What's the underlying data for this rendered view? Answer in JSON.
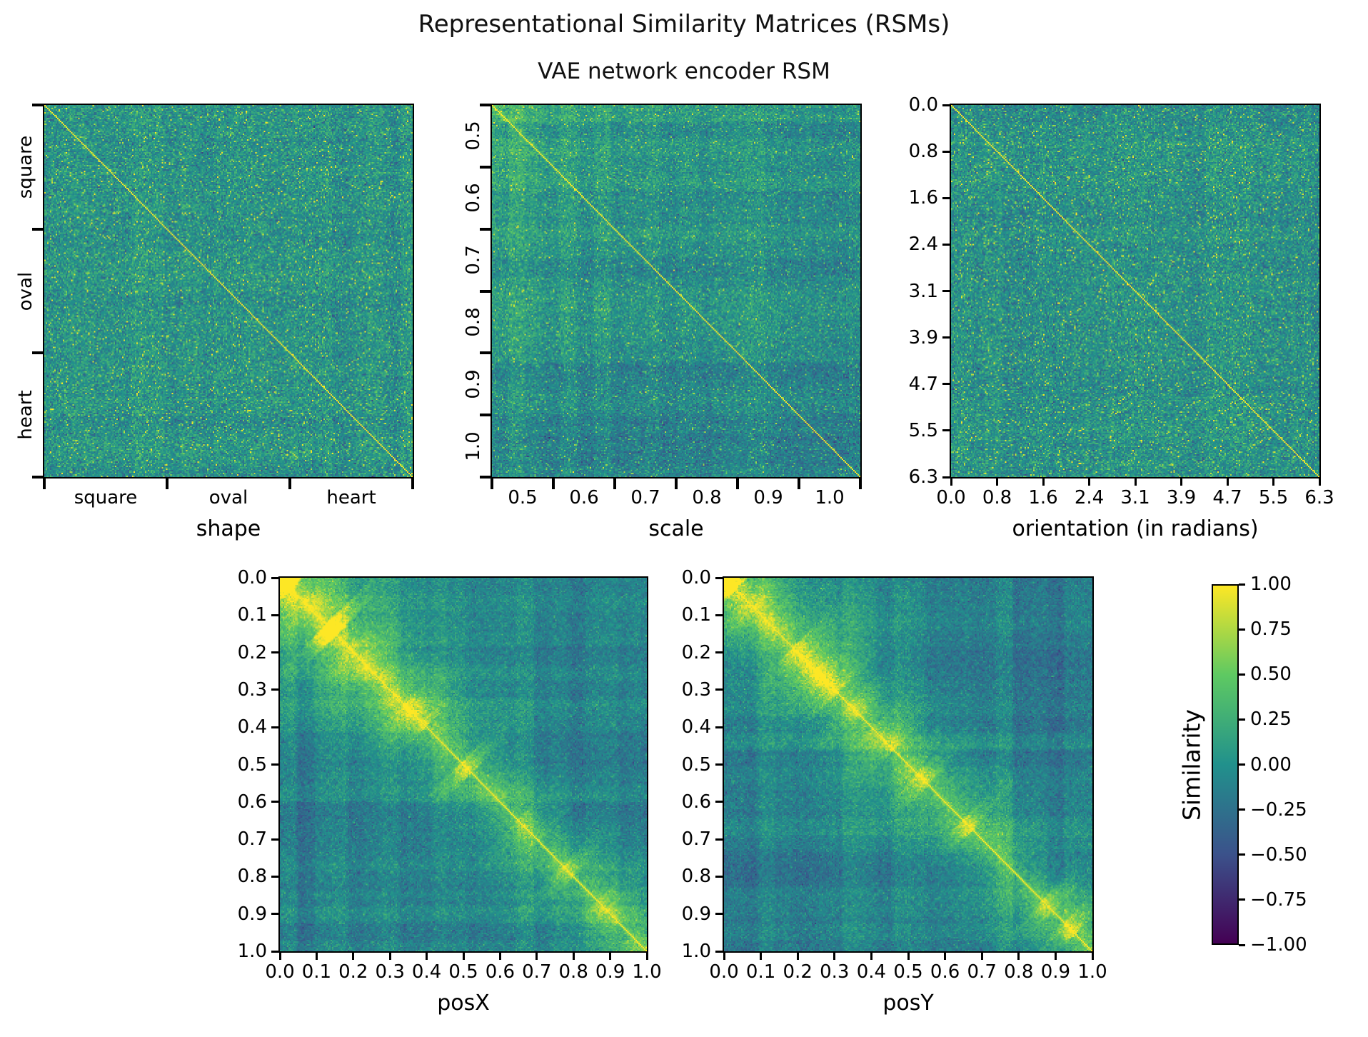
{
  "figure": {
    "title": "Representational Similarity Matrices (RSMs)",
    "subtitle": "VAE network encoder RSM"
  },
  "colorbar": {
    "label": "Similarity",
    "ticks": [
      "1.00",
      "0.75",
      "0.50",
      "0.25",
      "0.00",
      "−0.25",
      "−0.50",
      "−0.75",
      "−1.00"
    ],
    "range": [
      -1.0,
      1.0
    ],
    "colormap": "viridis",
    "gradient_stops": [
      "#440154",
      "#3b528b",
      "#21918c",
      "#5ec962",
      "#fde725"
    ]
  },
  "chart_data": [
    {
      "type": "heatmap",
      "factor": "shape",
      "xlabel": "shape",
      "ylabel": "",
      "x_ticks": {
        "style": "sections",
        "labels": [
          "square",
          "oval",
          "heart"
        ],
        "rotated": false
      },
      "y_ticks": {
        "style": "sections",
        "labels": [
          "square",
          "oval",
          "heart"
        ],
        "rotated": true
      },
      "colormap": "viridis",
      "value_range": [
        -1,
        1
      ],
      "diagonal_value": 1.0,
      "description": "Item-by-item similarity matrix sorted by shape; near-zero teal noise with green/yellow speckle and a thin bright yellow identity diagonal; little block structure across shape categories.",
      "synthesis": {
        "kind": "noise",
        "grid": 260,
        "seed": 7,
        "mean": 0.0,
        "noise_sd": 0.17,
        "band": 0.05,
        "speckle_prob": 0.05
      }
    },
    {
      "type": "heatmap",
      "factor": "scale",
      "xlabel": "scale",
      "ylabel": "",
      "x_ticks": {
        "style": "sections",
        "labels": [
          "0.5",
          "0.6",
          "0.7",
          "0.8",
          "0.9",
          "1.0"
        ],
        "rotated": false
      },
      "y_ticks": {
        "style": "sections",
        "labels": [
          "0.5",
          "0.6",
          "0.7",
          "0.8",
          "0.9",
          "1.0"
        ],
        "rotated": true
      },
      "colormap": "viridis",
      "value_range": [
        -1,
        1
      ],
      "diagonal_value": 1.0,
      "description": "Similarity sorted by scale; brighter greenish similarity among small scales (top-left corner), slightly bluer toward large scales, row/column banding, thin yellow identity diagonal.",
      "synthesis": {
        "kind": "gradient",
        "grid": 260,
        "seed": 13,
        "noise_sd": 0.15,
        "corner_glow": 0.3,
        "speckle_prob": 0.04
      }
    },
    {
      "type": "heatmap",
      "factor": "orientation",
      "xlabel": "orientation (in radians)",
      "ylabel": "",
      "x_ticks": {
        "style": "edge",
        "labels": [
          "0.0",
          "0.8",
          "1.6",
          "2.4",
          "3.1",
          "3.9",
          "4.7",
          "5.5",
          "6.3"
        ],
        "rotated": false
      },
      "y_ticks": {
        "style": "edge",
        "labels": [
          "0.0",
          "0.8",
          "1.6",
          "2.4",
          "3.1",
          "3.9",
          "4.7",
          "5.5",
          "6.3"
        ],
        "rotated": false
      },
      "colormap": "viridis",
      "value_range": [
        -1,
        1
      ],
      "diagonal_value": 1.0,
      "description": "Similarity sorted by orientation from 0 to 2π; near-zero teal noise with speckle and a thin bright yellow identity diagonal; no strong orientation structure.",
      "synthesis": {
        "kind": "noise",
        "grid": 260,
        "seed": 21,
        "mean": 0.0,
        "noise_sd": 0.17,
        "band": 0.055,
        "speckle_prob": 0.055
      }
    },
    {
      "type": "heatmap",
      "factor": "posX",
      "xlabel": "posX",
      "ylabel": "",
      "x_ticks": {
        "style": "edge",
        "labels": [
          "0.0",
          "0.1",
          "0.2",
          "0.3",
          "0.4",
          "0.5",
          "0.6",
          "0.7",
          "0.8",
          "0.9",
          "1.0"
        ],
        "rotated": false
      },
      "y_ticks": {
        "style": "edge",
        "labels": [
          "0.0",
          "0.1",
          "0.2",
          "0.3",
          "0.4",
          "0.5",
          "0.6",
          "0.7",
          "0.8",
          "0.9",
          "1.0"
        ],
        "rotated": false
      },
      "colormap": "viridis",
      "value_range": [
        -1,
        1
      ],
      "diagonal_value": 1.0,
      "description": "Similarity sorted by x-position; strong distance-dependent structure: broad bright green-yellow band along the diagonal with yellow blobs, brightest near posX≈0, fading to teal/blue off-diagonal with vertical banding.",
      "synthesis": {
        "kind": "decay",
        "grid": 260,
        "seed": 42,
        "noise_sd": 0.11,
        "decay": 0.1,
        "far_neg": 0.22
      }
    },
    {
      "type": "heatmap",
      "factor": "posY",
      "xlabel": "posY",
      "ylabel": "",
      "x_ticks": {
        "style": "edge",
        "labels": [
          "0.0",
          "0.1",
          "0.2",
          "0.3",
          "0.4",
          "0.5",
          "0.6",
          "0.7",
          "0.8",
          "0.9",
          "1.0"
        ],
        "rotated": false
      },
      "y_ticks": {
        "style": "edge",
        "labels": [
          "0.0",
          "0.1",
          "0.2",
          "0.3",
          "0.4",
          "0.5",
          "0.6",
          "0.7",
          "0.8",
          "0.9",
          "1.0"
        ],
        "rotated": false
      },
      "colormap": "viridis",
      "value_range": [
        -1,
        1
      ],
      "diagonal_value": 1.0,
      "description": "Similarity sorted by y-position; same distance-dependent banding as posX: bright green-yellow diagonal band with blobs, brightest near posY≈0, teal/blue far field with streaky banding.",
      "synthesis": {
        "kind": "decay",
        "grid": 260,
        "seed": 77,
        "noise_sd": 0.11,
        "decay": 0.1,
        "far_neg": 0.22
      }
    }
  ]
}
